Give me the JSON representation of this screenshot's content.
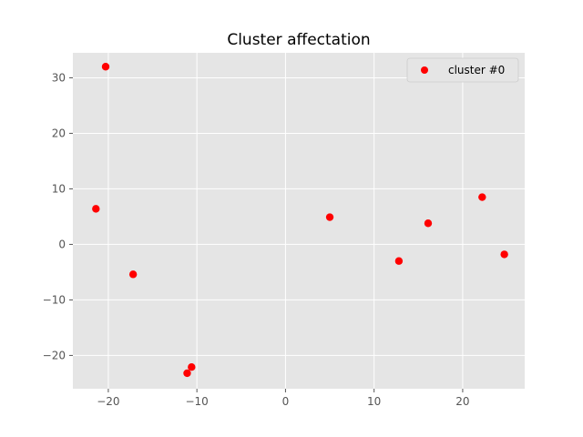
{
  "chart_data": {
    "type": "scatter",
    "title": "Cluster affectation",
    "xlabel": "",
    "ylabel": "",
    "xlim": [
      -24,
      27
    ],
    "ylim": [
      -26,
      34.5
    ],
    "xticks": [
      -20,
      -10,
      0,
      10,
      20
    ],
    "yticks": [
      -20,
      -10,
      0,
      10,
      20,
      30
    ],
    "xtick_labels": [
      "−20",
      "−10",
      "0",
      "10",
      "20"
    ],
    "ytick_labels": [
      "−20",
      "−10",
      "0",
      "10",
      "20",
      "30"
    ],
    "grid": true,
    "style": "ggplot",
    "legend_position": "top-right",
    "series": [
      {
        "name": "cluster #0",
        "color": "#ff0000",
        "x": [
          -20.3,
          -21.4,
          -17.2,
          -10.6,
          -11.1,
          5.0,
          12.8,
          16.1,
          22.2,
          24.7
        ],
        "y": [
          32.0,
          6.4,
          -5.4,
          -22.1,
          -23.2,
          4.9,
          -3.0,
          3.8,
          8.5,
          -1.8
        ]
      }
    ]
  }
}
